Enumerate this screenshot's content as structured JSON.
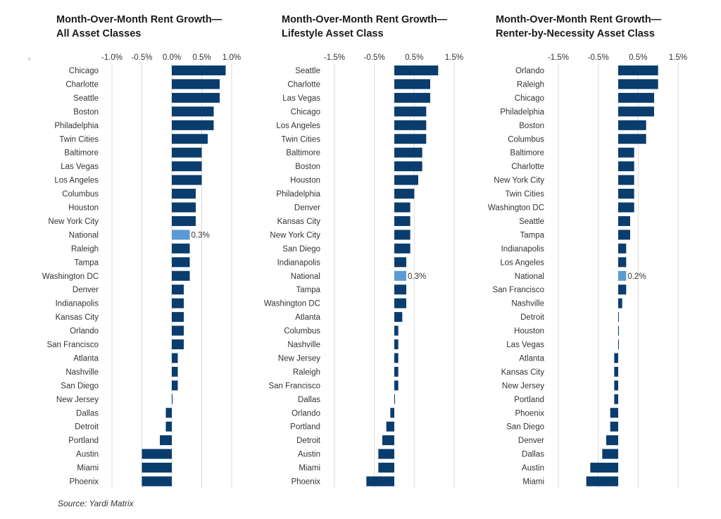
{
  "marker_glyph": "›",
  "source": "Source: Yardi Matrix",
  "colors": {
    "bar": "#0a3d6e",
    "highlight": "#5b9bd5",
    "grid": "#d9d9d9"
  },
  "chart_data": [
    {
      "type": "bar",
      "orientation": "horizontal",
      "title": [
        "Month-Over-Month Rent Growth—",
        "All Asset Classes"
      ],
      "xlim": [
        -1.0,
        1.0
      ],
      "ticks": [
        -1.0,
        -0.5,
        0.0,
        0.5,
        1.0
      ],
      "tick_labels": [
        "-1.0%",
        "-0.5%",
        "0.0%",
        "0.5%",
        "1.0%"
      ],
      "highlight": "National",
      "highlight_label": "0.3%",
      "categories": [
        "Chicago",
        "Charlotte",
        "Seattle",
        "Boston",
        "Philadelphia",
        "Twin Cities",
        "Baltimore",
        "Las Vegas",
        "Los Angeles",
        "Columbus",
        "Houston",
        "New York City",
        "National",
        "Raleigh",
        "Tampa",
        "Washington DC",
        "Denver",
        "Indianapolis",
        "Kansas City",
        "Orlando",
        "San Francisco",
        "Atlanta",
        "Nashville",
        "San Diego",
        "New Jersey",
        "Dallas",
        "Detroit",
        "Portland",
        "Austin",
        "Miami",
        "Phoenix"
      ],
      "values": [
        0.9,
        0.8,
        0.8,
        0.7,
        0.7,
        0.6,
        0.5,
        0.5,
        0.5,
        0.4,
        0.4,
        0.4,
        0.3,
        0.3,
        0.3,
        0.3,
        0.2,
        0.2,
        0.2,
        0.2,
        0.2,
        0.1,
        0.1,
        0.1,
        0.0,
        -0.1,
        -0.1,
        -0.2,
        -0.5,
        -0.5,
        -0.5
      ]
    },
    {
      "type": "bar",
      "orientation": "horizontal",
      "title": [
        "Month-Over-Month Rent Growth—",
        "Lifestyle Asset Class"
      ],
      "xlim": [
        -1.5,
        1.5
      ],
      "ticks": [
        -1.5,
        -0.5,
        0.5,
        1.5
      ],
      "tick_labels": [
        "-1.5%",
        "-0.5%",
        "0.5%",
        "1.5%"
      ],
      "highlight": "National",
      "highlight_label": "0.3%",
      "categories": [
        "Seattle",
        "Charlotte",
        "Las Vegas",
        "Chicago",
        "Los Angeles",
        "Twin Cities",
        "Baltimore",
        "Boston",
        "Houston",
        "Philadelphia",
        "Denver",
        "Kansas City",
        "New York City",
        "San Diego",
        "Indianapolis",
        "National",
        "Tampa",
        "Washington DC",
        "Atlanta",
        "Columbus",
        "Nashville",
        "New Jersey",
        "Raleigh",
        "San Francisco",
        "Dallas",
        "Orlando",
        "Portland",
        "Detroit",
        "Austin",
        "Miami",
        "Phoenix"
      ],
      "values": [
        1.1,
        0.9,
        0.9,
        0.8,
        0.8,
        0.8,
        0.7,
        0.7,
        0.6,
        0.5,
        0.4,
        0.4,
        0.4,
        0.4,
        0.3,
        0.3,
        0.3,
        0.3,
        0.2,
        0.1,
        0.1,
        0.1,
        0.1,
        0.1,
        0.0,
        -0.1,
        -0.2,
        -0.3,
        -0.4,
        -0.4,
        -0.7
      ]
    },
    {
      "type": "bar",
      "orientation": "horizontal",
      "title": [
        "Month-Over-Month Rent Growth—",
        "Renter-by-Necessity Asset Class"
      ],
      "xlim": [
        -1.5,
        1.5
      ],
      "ticks": [
        -1.5,
        -0.5,
        0.5,
        1.5
      ],
      "tick_labels": [
        "-1.5%",
        "-0.5%",
        "0.5%",
        "1.5%"
      ],
      "highlight": "National",
      "highlight_label": "0.2%",
      "categories": [
        "Orlando",
        "Raleigh",
        "Chicago",
        "Philadelphia",
        "Boston",
        "Columbus",
        "Baltimore",
        "Charlotte",
        "New York City",
        "Twin Cities",
        "Washington DC",
        "Seattle",
        "Tampa",
        "Indianapolis",
        "Los Angeles",
        "National",
        "San Francisco",
        "Nashville",
        "Detroit",
        "Houston",
        "Las Vegas",
        "Atlanta",
        "Kansas City",
        "New Jersey",
        "Portland",
        "Phoenix",
        "San Diego",
        "Denver",
        "Dallas",
        "Austin",
        "Miami"
      ],
      "values": [
        1.0,
        1.0,
        0.9,
        0.9,
        0.7,
        0.7,
        0.4,
        0.4,
        0.4,
        0.4,
        0.4,
        0.3,
        0.3,
        0.2,
        0.2,
        0.2,
        0.2,
        0.1,
        0.0,
        0.0,
        0.0,
        -0.1,
        -0.1,
        -0.1,
        -0.1,
        -0.2,
        -0.2,
        -0.3,
        -0.4,
        -0.7,
        -0.8
      ]
    }
  ]
}
